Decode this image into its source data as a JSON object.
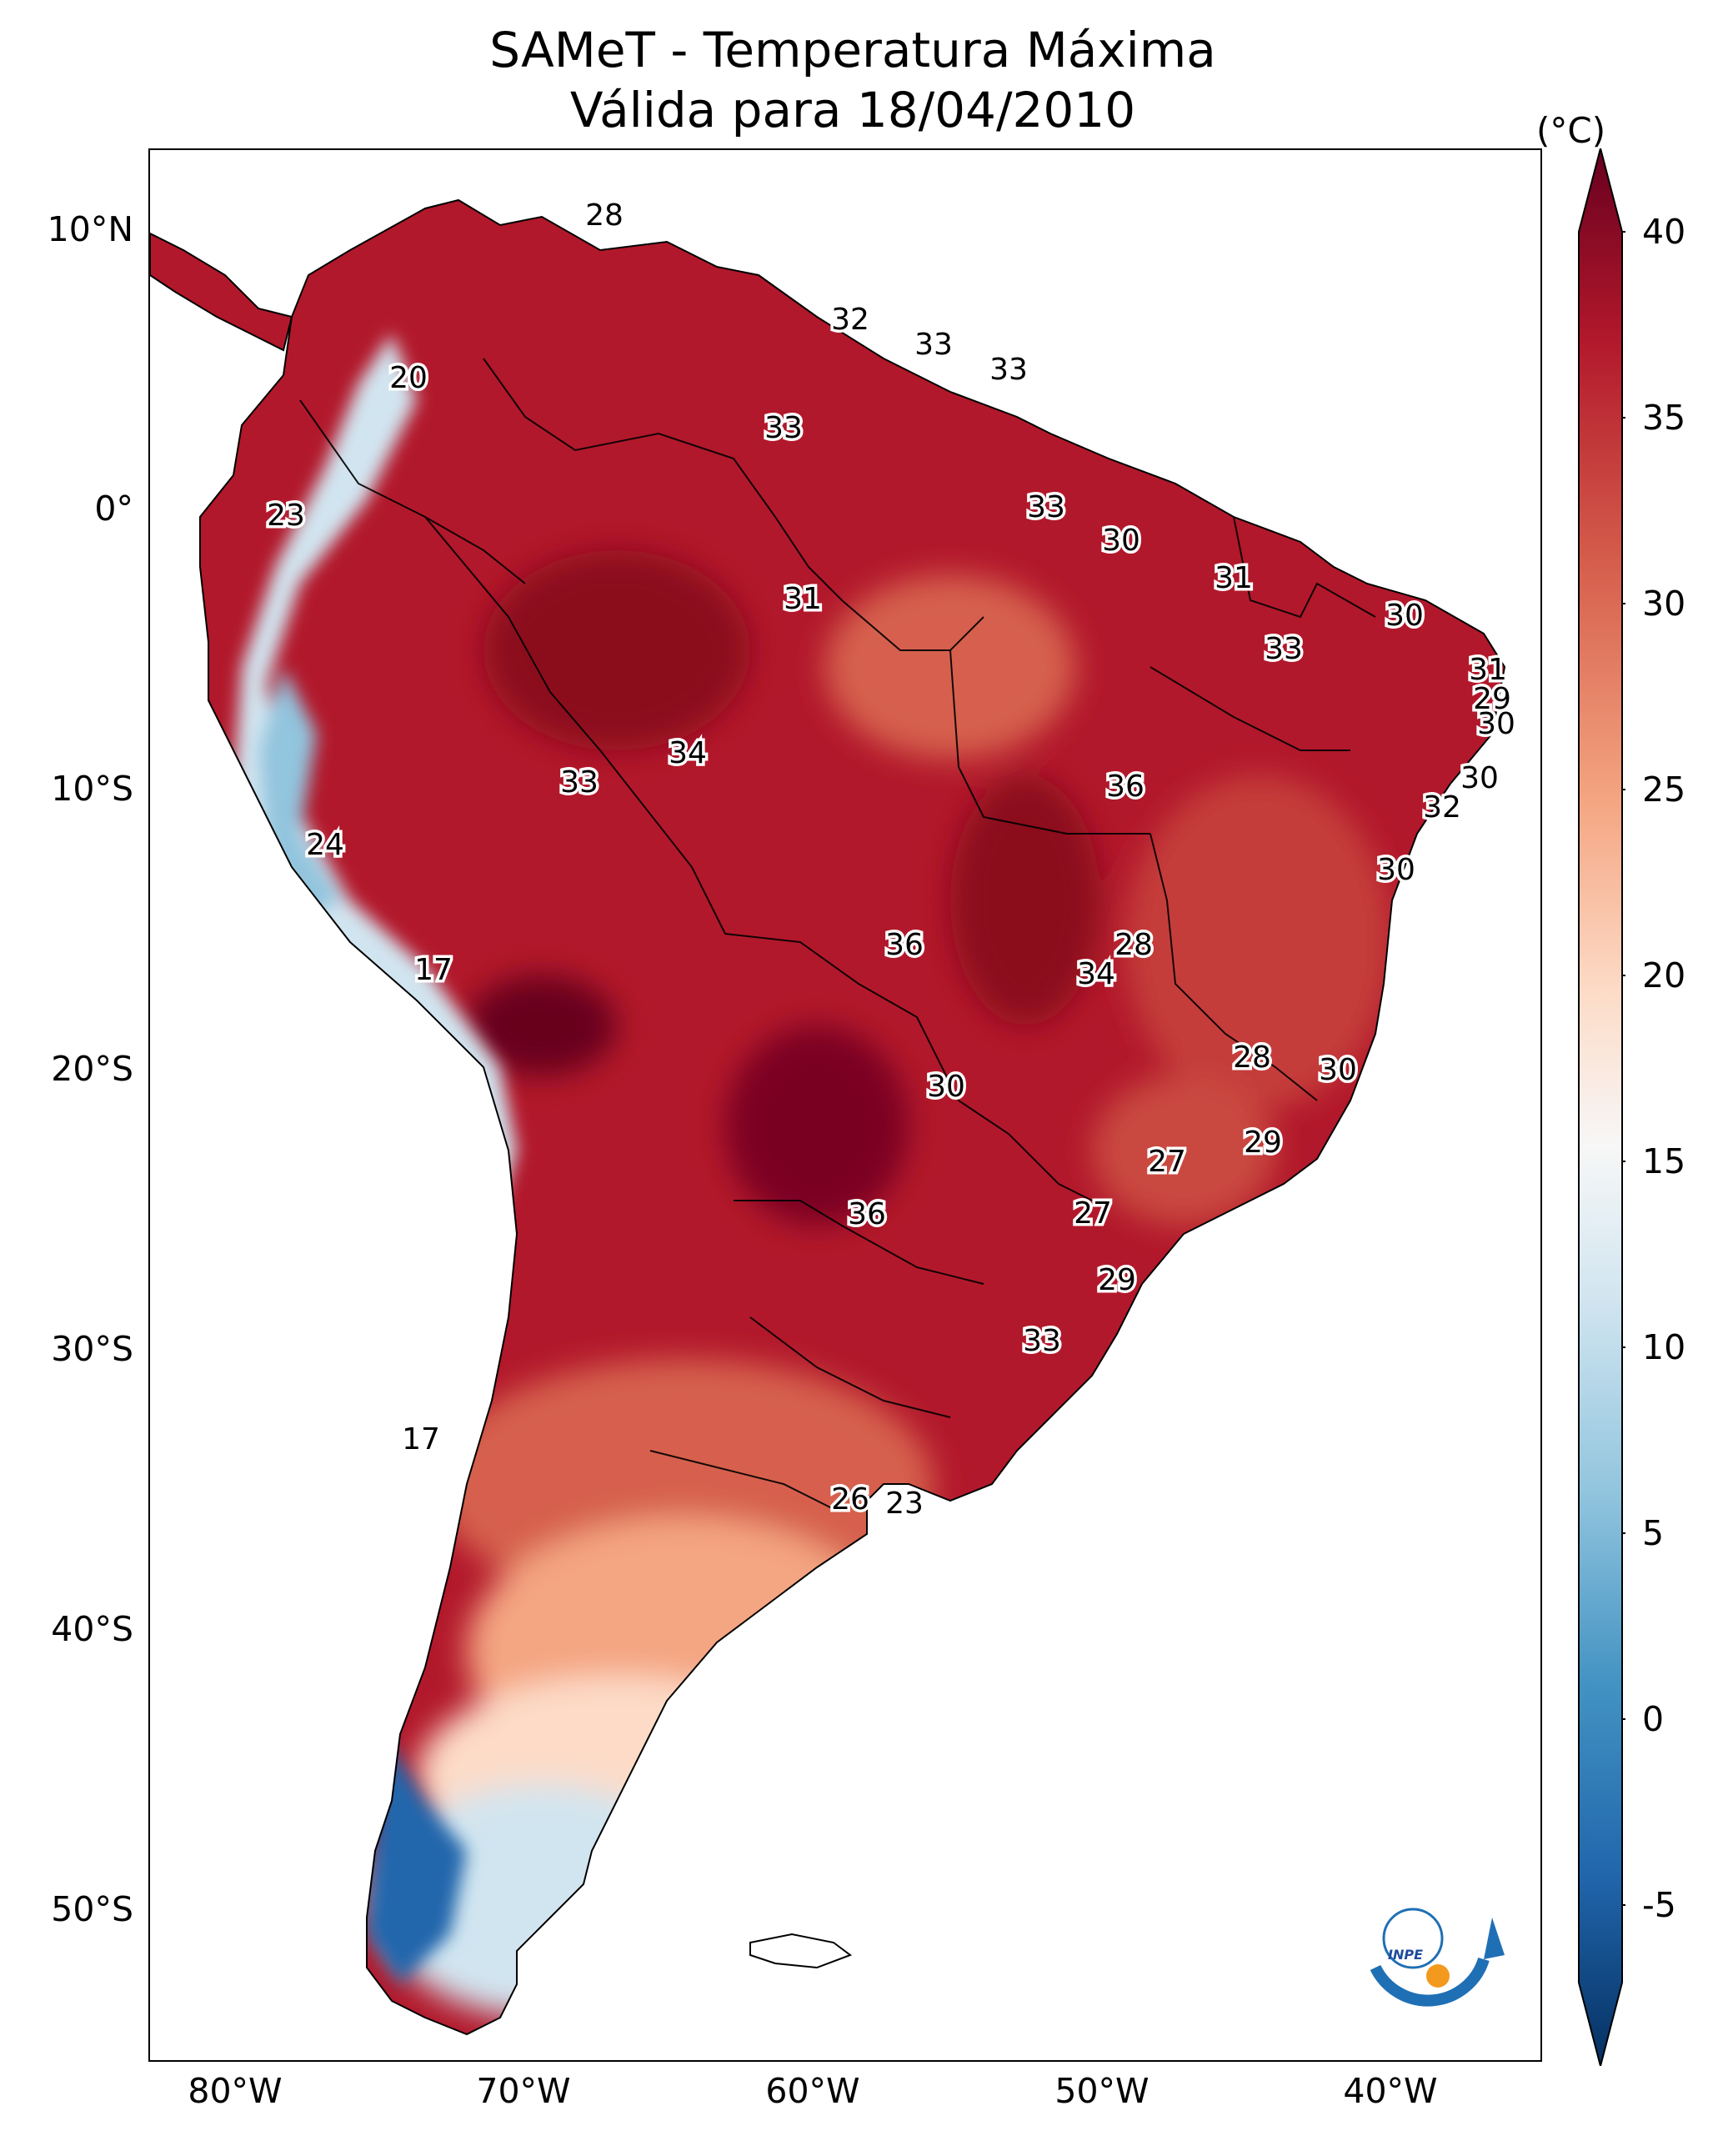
{
  "title": {
    "line1": "SAMeT - Temperatura Máxima",
    "line2": "Válida para 18/04/2010"
  },
  "axes": {
    "lat_labels": [
      "10°N",
      "0°",
      "10°S",
      "20°S",
      "30°S",
      "40°S",
      "50°S"
    ],
    "lon_labels": [
      "80°W",
      "70°W",
      "60°W",
      "50°W",
      "40°W"
    ]
  },
  "colorbar": {
    "unit": "(°C)",
    "ticks": [
      "40",
      "35",
      "30",
      "25",
      "20",
      "15",
      "10",
      "5",
      "0",
      "-5"
    ],
    "min": -7,
    "max": 40,
    "colors": {
      "max": "#67001f",
      "high": "#b2182b",
      "warm": "#d6604d",
      "mild": "#f4a582",
      "cool": "#fddbc7",
      "neutral": "#f7f7f7",
      "chill": "#d1e5f0",
      "cold": "#92c5de",
      "colder": "#4393c3",
      "coldest": "#2166ac",
      "min": "#053061"
    }
  },
  "isotherm_labels": [
    "28",
    "32",
    "33",
    "33",
    "20",
    "33",
    "23",
    "33",
    "30",
    "31",
    "31",
    "30",
    "33",
    "31",
    "29",
    "30",
    "34",
    "33",
    "36",
    "30",
    "24",
    "32",
    "30",
    "36",
    "28",
    "17",
    "34",
    "28",
    "30",
    "30",
    "27",
    "29",
    "27",
    "36",
    "29",
    "33",
    "17",
    "26",
    "23"
  ],
  "logo": {
    "text": "INPE",
    "icon": "inpe-logo-icon"
  }
}
